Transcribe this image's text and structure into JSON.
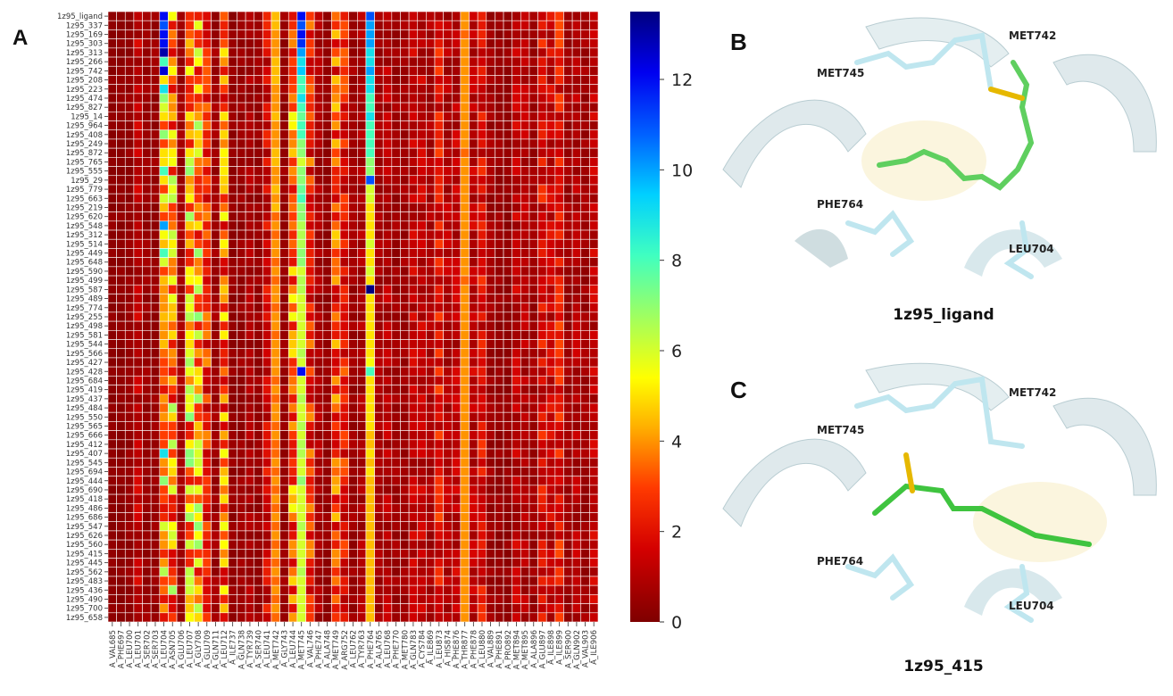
{
  "chart_data": {
    "type": "heatmap",
    "panel_label": "A",
    "title": "",
    "xlabel": "",
    "ylabel": "",
    "colormap": "jet_r",
    "colorbar": {
      "min": 0,
      "max": 13.5,
      "ticks": [
        0,
        2,
        4,
        6,
        8,
        10,
        12
      ]
    },
    "rows": [
      "1z95_ligand",
      "1z95_337",
      "1z95_169",
      "1z95_303",
      "1z95_313",
      "1z95_266",
      "1z95_742",
      "1z95_208",
      "1z95_223",
      "1z95_474",
      "1z95_827",
      "1z95_14",
      "1z95_964",
      "1z95_408",
      "1z95_249",
      "1z95_872",
      "1z95_765",
      "1z95_555",
      "1z95_29",
      "1z95_779",
      "1z95_663",
      "1z95_219",
      "1z95_620",
      "1z95_548",
      "1z95_312",
      "1z95_514",
      "1z95_449",
      "1z95_648",
      "1z95_590",
      "1z95_499",
      "1z95_587",
      "1z95_489",
      "1z95_774",
      "1z95_255",
      "1z95_498",
      "1z95_581",
      "1z95_544",
      "1z95_566",
      "1z95_427",
      "1z95_428",
      "1z95_684",
      "1z95_419",
      "1z95_437",
      "1z95_484",
      "1z95_550",
      "1z95_565",
      "1z95_666",
      "1z95_412",
      "1z95_407",
      "1z95_545",
      "1z95_694",
      "1z95_444",
      "1z95_690",
      "1z95_418",
      "1z95_486",
      "1z95_686",
      "1z95_547",
      "1z95_626",
      "1z95_560",
      "1z95_415",
      "1z95_445",
      "1z95_562",
      "1z95_483",
      "1z95_436",
      "1z95_490",
      "1z95_700",
      "1z95_658"
    ],
    "columns": [
      "A_VAL685",
      "A_PHE697",
      "A_LEU700",
      "A_LEU701",
      "A_SER702",
      "A_SER703",
      "A_LEU704",
      "A_ASN705",
      "A_GLU706",
      "A_LEU707",
      "A_GLY708",
      "A_GLU709",
      "A_GLN711",
      "A_LEU712",
      "A_ILE737",
      "A_GLN738",
      "A_TYR739",
      "A_SER740",
      "A_LEU741",
      "A_MET742",
      "A_GLY743",
      "A_LEU744",
      "A_MET745",
      "A_VAL746",
      "A_PHE747",
      "A_ALA748",
      "A_MET749",
      "A_ARG752",
      "A_LEU762",
      "A_TYR763",
      "A_PHE764",
      "A_ALA765",
      "A_LEU768",
      "A_PHE770",
      "A_MET780",
      "A_GLN783",
      "A_CYS784",
      "A_ILE869",
      "A_LEU873",
      "A_HIS874",
      "A_PHE876",
      "A_THR877",
      "A_PHE878",
      "A_LEU880",
      "A_VAL889",
      "A_PHE891",
      "A_PRO892",
      "A_MET894",
      "A_MET895",
      "A_ALA896",
      "A_GLU897",
      "A_ILE898",
      "A_ILE899",
      "A_SER900",
      "A_GLN902",
      "A_VAL903",
      "A_ILE906"
    ],
    "column_typical_values": [
      0.3,
      0.3,
      0.4,
      1.2,
      0.5,
      0.5,
      5.5,
      4.2,
      0.6,
      4.5,
      4.5,
      2.5,
      0.6,
      3.5,
      0.4,
      0.5,
      0.8,
      0.5,
      1.6,
      4.5,
      0.5,
      3.5,
      8.5,
      2.5,
      0.8,
      0.4,
      3.0,
      2.2,
      0.6,
      0.8,
      4.8,
      0.7,
      1.0,
      0.6,
      0.6,
      1.2,
      1.2,
      0.8,
      2.0,
      1.0,
      1.2,
      4.0,
      1.2,
      1.8,
      0.6,
      0.5,
      0.4,
      1.2,
      1.0,
      0.6,
      1.8,
      1.4,
      2.0,
      0.6,
      1.0,
      0.6,
      1.2
    ],
    "highlighted_columns": {
      "A_LEU704": [
        12,
        11,
        12,
        12,
        13,
        8,
        12.5,
        5,
        9,
        7,
        6,
        5,
        3,
        7,
        3,
        5,
        5,
        8,
        5,
        3,
        6,
        4.5,
        3,
        10,
        5.5,
        4.5,
        8,
        6,
        3,
        4.5,
        4,
        4,
        4,
        4.5,
        4,
        4,
        4.5,
        3.5,
        3,
        3,
        3.5,
        2,
        4,
        3.5,
        4,
        3,
        3,
        3,
        9,
        4,
        3.5,
        7,
        3,
        3,
        2,
        2.5,
        6,
        4,
        4,
        2.5,
        4,
        6.5,
        3,
        3.5,
        2,
        4,
        2
      ],
      "A_MET742": [
        4.5,
        4.5,
        4,
        4,
        4,
        4.5,
        4.5,
        4.5,
        4,
        4,
        4,
        4.5,
        4,
        4,
        4,
        4.5,
        4.5,
        4,
        4,
        4.5,
        4,
        4.5,
        3.5,
        4,
        3.5,
        4,
        4,
        3.5,
        4,
        3.5,
        4,
        4,
        3.5,
        4,
        4,
        3.5,
        4,
        4,
        4,
        4,
        3.5,
        4,
        3.5,
        4,
        4,
        3.5,
        4,
        3.5,
        3.5,
        4,
        3.5,
        4,
        3.5,
        4,
        3.5,
        4,
        3.5,
        4,
        3.5,
        4,
        3.5,
        4,
        3.5,
        4,
        3.5,
        4,
        3.5
      ],
      "A_MET745": [
        12,
        11,
        12,
        11.5,
        10,
        9,
        9.5,
        8,
        8,
        9,
        8,
        7.5,
        8,
        8,
        7,
        7,
        6,
        7,
        7,
        7.5,
        8,
        7,
        7,
        6.5,
        6.5,
        6.5,
        7,
        7,
        6,
        6.5,
        6.5,
        6,
        6,
        6,
        6,
        6,
        6,
        6.5,
        6,
        12,
        6,
        6,
        6.5,
        6,
        6,
        6.5,
        6,
        6.5,
        6.5,
        6,
        6,
        7,
        6,
        6,
        6,
        6,
        6.5,
        6,
        6,
        6,
        6,
        6.5,
        6,
        6,
        6,
        6,
        6
      ],
      "A_PHE764": [
        11,
        10,
        10,
        10,
        9,
        9,
        10,
        9,
        9,
        8,
        8,
        9,
        8,
        8,
        8,
        8,
        7,
        7,
        11,
        6,
        6,
        5,
        5,
        5,
        5,
        6,
        5,
        5,
        6,
        5,
        13.5,
        5,
        5,
        5,
        5,
        5,
        5,
        5,
        5.5,
        8,
        5,
        5,
        5,
        5,
        5,
        5,
        4.5,
        4.5,
        5,
        4.5,
        5,
        4.5,
        4.5,
        4.5,
        4.5,
        4.5,
        4.5,
        4.5,
        4.5,
        4.5,
        4.5,
        4.5,
        4.5,
        4.5,
        4.5,
        4.5,
        4.5
      ],
      "A_THR877": [
        4,
        4,
        3.5,
        4,
        4,
        4,
        4,
        4,
        4,
        4,
        4,
        4,
        4,
        4,
        4,
        3.5,
        4,
        4,
        4,
        4,
        4,
        4,
        4,
        4,
        4,
        4,
        4,
        4,
        4,
        3.5,
        4,
        4,
        4,
        4,
        4,
        4,
        4,
        4,
        4,
        4,
        4,
        4,
        4,
        4,
        4,
        4,
        4,
        4,
        4,
        4,
        4,
        4,
        4,
        4,
        4,
        4,
        4,
        4,
        4,
        4,
        4,
        4,
        4,
        4,
        4,
        4,
        4
      ]
    }
  },
  "panels": [
    {
      "letter": "B",
      "caption": "1z95_ligand",
      "residue_labels": [
        "MET742",
        "MET745",
        "PHE764",
        "LEU704"
      ]
    },
    {
      "letter": "C",
      "caption": "1z95_415",
      "residue_labels": [
        "MET742",
        "MET745",
        "PHE764",
        "LEU704"
      ]
    }
  ]
}
